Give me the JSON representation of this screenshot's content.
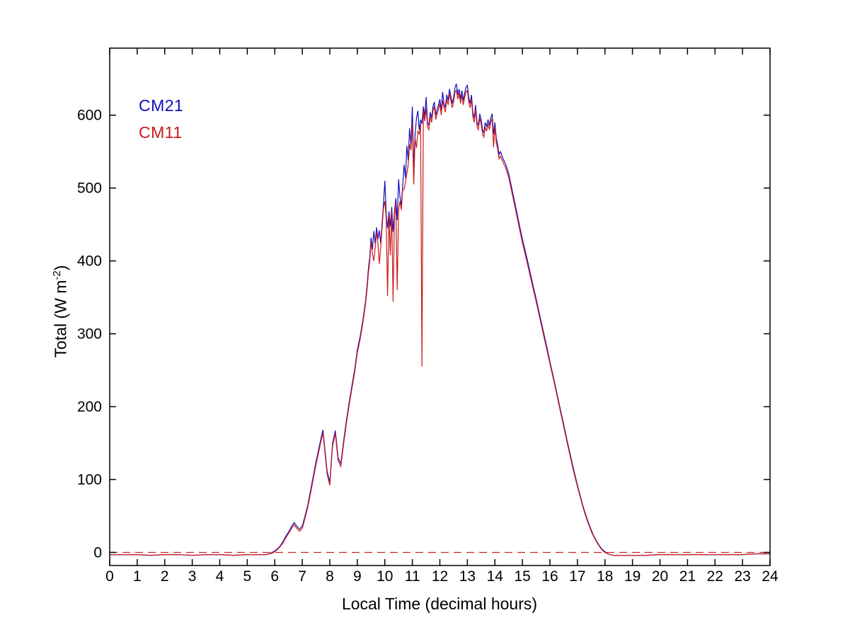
{
  "chart_data": {
    "type": "line",
    "title": "",
    "xlabel": "Local Time (decimal hours)",
    "ylabel": "Total (W m^-2)",
    "ylabel_parts": {
      "base": "Total (W m",
      "sup": "-2",
      "close": ")"
    },
    "grid": false,
    "legend_position": "upper-left-inside",
    "axes": {
      "xlim": [
        0,
        24
      ],
      "ylim": [
        -18,
        692
      ],
      "xticks": [
        0,
        1,
        2,
        3,
        4,
        5,
        6,
        7,
        8,
        9,
        10,
        11,
        12,
        13,
        14,
        15,
        16,
        17,
        18,
        19,
        20,
        21,
        22,
        23,
        24
      ],
      "yticks": [
        0,
        100,
        200,
        300,
        400,
        500,
        600
      ]
    },
    "zero_line": {
      "y": 0,
      "style": "dashed",
      "color": "#cc2222"
    },
    "x": [
      0,
      0.5,
      1,
      1.5,
      2,
      2.5,
      3,
      3.5,
      4,
      4.5,
      5,
      5.3,
      5.5,
      5.7,
      5.8,
      5.9,
      6,
      6.1,
      6.2,
      6.3,
      6.4,
      6.5,
      6.6,
      6.7,
      6.8,
      6.9,
      7,
      7.1,
      7.2,
      7.3,
      7.4,
      7.5,
      7.6,
      7.7,
      7.75,
      7.8,
      7.9,
      8,
      8.1,
      8.2,
      8.3,
      8.4,
      8.5,
      8.6,
      8.7,
      8.8,
      8.9,
      9,
      9.1,
      9.2,
      9.3,
      9.35,
      9.4,
      9.45,
      9.5,
      9.55,
      9.6,
      9.65,
      9.7,
      9.75,
      9.8,
      9.85,
      9.9,
      9.95,
      10,
      10.05,
      10.1,
      10.15,
      10.2,
      10.25,
      10.3,
      10.35,
      10.4,
      10.45,
      10.5,
      10.55,
      10.6,
      10.65,
      10.7,
      10.75,
      10.8,
      10.85,
      10.9,
      10.95,
      11,
      11.05,
      11.1,
      11.15,
      11.2,
      11.25,
      11.3,
      11.35,
      11.4,
      11.45,
      11.5,
      11.55,
      11.6,
      11.65,
      11.7,
      11.75,
      11.8,
      11.85,
      11.9,
      11.95,
      12,
      12.05,
      12.1,
      12.15,
      12.2,
      12.25,
      12.3,
      12.35,
      12.4,
      12.45,
      12.5,
      12.55,
      12.6,
      12.65,
      12.7,
      12.75,
      12.8,
      12.85,
      12.9,
      12.95,
      13,
      13.05,
      13.1,
      13.15,
      13.2,
      13.25,
      13.3,
      13.35,
      13.4,
      13.45,
      13.5,
      13.55,
      13.6,
      13.65,
      13.7,
      13.75,
      13.8,
      13.85,
      13.9,
      13.95,
      14,
      14.05,
      14.1,
      14.15,
      14.2,
      14.3,
      14.4,
      14.5,
      14.6,
      14.7,
      14.8,
      14.9,
      15,
      15.1,
      15.2,
      15.3,
      15.4,
      15.5,
      15.6,
      15.7,
      15.8,
      15.9,
      16,
      16.1,
      16.2,
      16.3,
      16.4,
      16.5,
      16.6,
      16.7,
      16.8,
      16.9,
      17,
      17.1,
      17.2,
      17.3,
      17.4,
      17.5,
      17.6,
      17.7,
      17.8,
      17.9,
      18,
      18.1,
      18.2,
      18.3,
      18.4,
      18.5,
      18.6,
      18.8,
      19,
      19.5,
      20,
      20.5,
      21,
      21.5,
      22,
      22.5,
      23,
      23.5,
      24
    ],
    "series": [
      {
        "name": "CM21",
        "color": "#0f0fbf",
        "values": [
          -3,
          -3,
          -3,
          -4,
          -3,
          -3,
          -4,
          -3,
          -3,
          -4,
          -3,
          -3,
          -3,
          -3,
          -2,
          0,
          2,
          5,
          9,
          15,
          22,
          28,
          35,
          41,
          36,
          32,
          36,
          50,
          65,
          85,
          105,
          125,
          142,
          160,
          168,
          150,
          112,
          96,
          150,
          167,
          130,
          122,
          152,
          180,
          205,
          228,
          250,
          278,
          296,
          318,
          345,
          365,
          388,
          405,
          432,
          416,
          441,
          424,
          446,
          430,
          442,
          424,
          452,
          478,
          510,
          464,
          445,
          468,
          447,
          474,
          440,
          468,
          486,
          456,
          512,
          488,
          476,
          504,
          532,
          514,
          558,
          538,
          582,
          558,
          612,
          528,
          574,
          596,
          606,
          580,
          594,
          588,
          612,
          598,
          625,
          590,
          586,
          604,
          596,
          612,
          618,
          600,
          608,
          614,
          622,
          606,
          632,
          616,
          610,
          628,
          620,
          636,
          626,
          616,
          624,
          638,
          643,
          628,
          636,
          622,
          634,
          620,
          630,
          638,
          641,
          624,
          616,
          628,
          604,
          596,
          614,
          590,
          586,
          602,
          594,
          580,
          576,
          590,
          584,
          594,
          586,
          596,
          602,
          574,
          590,
          568,
          560,
          546,
          550,
          540,
          532,
          520,
          502,
          484,
          466,
          448,
          430,
          414,
          398,
          381,
          364,
          348,
          331,
          314,
          297,
          280,
          262,
          245,
          228,
          210,
          193,
          176,
          158,
          141,
          124,
          108,
          92,
          78,
          64,
          52,
          41,
          31,
          22,
          15,
          9,
          4,
          1,
          -2,
          -3,
          -4,
          -4,
          -4,
          -4,
          -4,
          -4,
          -4,
          -3,
          -3,
          -3,
          -3,
          -3,
          -3,
          -3,
          -2,
          -2
        ]
      },
      {
        "name": "CM11",
        "color": "#cc1a1a",
        "values": [
          -3,
          -3,
          -3,
          -4,
          -3,
          -3,
          -4,
          -3,
          -3,
          -4,
          -3,
          -3,
          -3,
          -3,
          -2,
          -1,
          1,
          4,
          8,
          13,
          20,
          26,
          32,
          38,
          33,
          29,
          33,
          47,
          62,
          81,
          101,
          121,
          138,
          156,
          164,
          146,
          108,
          92,
          146,
          163,
          126,
          118,
          148,
          176,
          201,
          224,
          246,
          274,
          292,
          314,
          341,
          359,
          382,
          399,
          426,
          410,
          400,
          418,
          440,
          424,
          396,
          418,
          446,
          472,
          482,
          458,
          352,
          462,
          408,
          468,
          344,
          462,
          480,
          360,
          470,
          482,
          470,
          498,
          498,
          508,
          520,
          532,
          560,
          552,
          590,
          505,
          568,
          555,
          578,
          574,
          588,
          255,
          606,
          592,
          610,
          584,
          580,
          598,
          590,
          606,
          612,
          594,
          602,
          608,
          616,
          600,
          620,
          610,
          604,
          622,
          614,
          630,
          620,
          610,
          618,
          632,
          634,
          622,
          630,
          616,
          628,
          614,
          624,
          632,
          634,
          618,
          610,
          622,
          598,
          590,
          608,
          584,
          580,
          596,
          588,
          574,
          570,
          584,
          578,
          588,
          580,
          590,
          596,
          556,
          584,
          562,
          554,
          540,
          544,
          535,
          527,
          515,
          497,
          479,
          461,
          443,
          425,
          409,
          393,
          376,
          360,
          344,
          327,
          310,
          293,
          276,
          259,
          242,
          225,
          207,
          190,
          173,
          155,
          138,
          121,
          105,
          90,
          76,
          62,
          50,
          39,
          29,
          21,
          14,
          8,
          3,
          0,
          -2,
          -3,
          -4,
          -4,
          -4,
          -4,
          -4,
          -4,
          -4,
          -3,
          -3,
          -3,
          -3,
          -3,
          -3,
          -3,
          -2,
          -2
        ]
      }
    ]
  }
}
